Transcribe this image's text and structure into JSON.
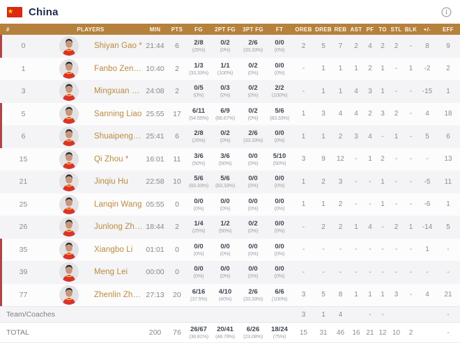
{
  "topbar": {
    "team_name": "China",
    "flag_icon": "china-flag",
    "info_icon": "info-circle"
  },
  "colors": {
    "header_bg": "#B5813C",
    "marker_red": "#B04548",
    "name_gold": "#BB8A3E",
    "title_navy": "#1E2B4D",
    "row_alt": "#F4F4F6",
    "flag_red": "#DE2910"
  },
  "table": {
    "columns": [
      "#",
      "PLAYERS",
      "MIN",
      "PTS",
      "FG",
      "2PT FG",
      "3PT FG",
      "FT",
      "OREB",
      "DREB",
      "REB",
      "AST",
      "PF",
      "TO",
      "STL",
      "BLK",
      "+/-",
      "EFF"
    ],
    "players": [
      {
        "num": "0",
        "name": "Shiyan Gao *",
        "marked": true,
        "min": "21:44",
        "pts": "6",
        "fg": "2/8",
        "fg_pct": "(25%)",
        "fg2": "0/2",
        "fg2_pct": "(0%)",
        "fg3": "2/6",
        "fg3_pct": "(33.33%)",
        "ft": "0/0",
        "ft_pct": "(0%)",
        "oreb": "2",
        "dreb": "5",
        "reb": "7",
        "ast": "2",
        "pf": "4",
        "to": "2",
        "stl": "2",
        "blk": "-",
        "pm": "8",
        "eff": "9"
      },
      {
        "num": "1",
        "name": "Fanbo Zeng *",
        "marked": false,
        "min": "10:40",
        "pts": "2",
        "fg": "1/3",
        "fg_pct": "(33.33%)",
        "fg2": "1/1",
        "fg2_pct": "(100%)",
        "fg3": "0/2",
        "fg3_pct": "(0%)",
        "ft": "0/0",
        "ft_pct": "(0%)",
        "oreb": "-",
        "dreb": "1",
        "reb": "1",
        "ast": "1",
        "pf": "2",
        "to": "1",
        "stl": "-",
        "blk": "1",
        "pm": "-2",
        "eff": "2"
      },
      {
        "num": "3",
        "name": "Mingxuan Hu *",
        "marked": false,
        "min": "24:08",
        "pts": "2",
        "fg": "0/5",
        "fg_pct": "(0%)",
        "fg2": "0/3",
        "fg2_pct": "(0%)",
        "fg3": "0/2",
        "fg3_pct": "(0%)",
        "ft": "2/2",
        "ft_pct": "(100%)",
        "oreb": "-",
        "dreb": "1",
        "reb": "1",
        "ast": "4",
        "pf": "3",
        "to": "1",
        "stl": "-",
        "blk": "-",
        "pm": "-15",
        "eff": "1"
      },
      {
        "num": "5",
        "name": "Sanning Liao",
        "marked": true,
        "min": "25:55",
        "pts": "17",
        "fg": "6/11",
        "fg_pct": "(54.55%)",
        "fg2": "6/9",
        "fg2_pct": "(66.67%)",
        "fg3": "0/2",
        "fg3_pct": "(0%)",
        "ft": "5/6",
        "ft_pct": "(83.33%)",
        "oreb": "1",
        "dreb": "3",
        "reb": "4",
        "ast": "4",
        "pf": "2",
        "to": "3",
        "stl": "2",
        "blk": "-",
        "pm": "4",
        "eff": "18"
      },
      {
        "num": "6",
        "name": "Shuaipeng Cheng",
        "marked": true,
        "min": "25:41",
        "pts": "6",
        "fg": "2/8",
        "fg_pct": "(25%)",
        "fg2": "0/2",
        "fg2_pct": "(0%)",
        "fg3": "2/6",
        "fg3_pct": "(33.33%)",
        "ft": "0/0",
        "ft_pct": "(0%)",
        "oreb": "1",
        "dreb": "1",
        "reb": "2",
        "ast": "3",
        "pf": "4",
        "to": "-",
        "stl": "1",
        "blk": "-",
        "pm": "5",
        "eff": "6"
      },
      {
        "num": "15",
        "name": "Qi Zhou *",
        "marked": false,
        "min": "16:01",
        "pts": "11",
        "fg": "3/6",
        "fg_pct": "(50%)",
        "fg2": "3/6",
        "fg2_pct": "(50%)",
        "fg3": "0/0",
        "fg3_pct": "(0%)",
        "ft": "5/10",
        "ft_pct": "(50%)",
        "oreb": "3",
        "dreb": "9",
        "reb": "12",
        "ast": "-",
        "pf": "1",
        "to": "2",
        "stl": "-",
        "blk": "-",
        "pm": "-",
        "eff": "13"
      },
      {
        "num": "21",
        "name": "Jinqiu Hu",
        "marked": false,
        "min": "22:58",
        "pts": "10",
        "fg": "5/6",
        "fg_pct": "(83.33%)",
        "fg2": "5/6",
        "fg2_pct": "(83.33%)",
        "fg3": "0/0",
        "fg3_pct": "(0%)",
        "ft": "0/0",
        "ft_pct": "(0%)",
        "oreb": "1",
        "dreb": "2",
        "reb": "3",
        "ast": "-",
        "pf": "-",
        "to": "1",
        "stl": "-",
        "blk": "-",
        "pm": "-5",
        "eff": "11"
      },
      {
        "num": "25",
        "name": "Lanqin Wang",
        "marked": false,
        "min": "05:55",
        "pts": "0",
        "fg": "0/0",
        "fg_pct": "(0%)",
        "fg2": "0/0",
        "fg2_pct": "(0%)",
        "fg3": "0/0",
        "fg3_pct": "(0%)",
        "ft": "0/0",
        "ft_pct": "(0%)",
        "oreb": "1",
        "dreb": "1",
        "reb": "2",
        "ast": "-",
        "pf": "-",
        "to": "1",
        "stl": "-",
        "blk": "-",
        "pm": "-6",
        "eff": "1"
      },
      {
        "num": "26",
        "name": "Junlong Zhu *",
        "marked": false,
        "min": "18:44",
        "pts": "2",
        "fg": "1/4",
        "fg_pct": "(25%)",
        "fg2": "1/2",
        "fg2_pct": "(50%)",
        "fg3": "0/2",
        "fg3_pct": "(0%)",
        "ft": "0/0",
        "ft_pct": "(0%)",
        "oreb": "-",
        "dreb": "2",
        "reb": "2",
        "ast": "1",
        "pf": "4",
        "to": "-",
        "stl": "2",
        "blk": "1",
        "pm": "-14",
        "eff": "5"
      },
      {
        "num": "35",
        "name": "Xiangbo Li",
        "marked": true,
        "min": "01:01",
        "pts": "0",
        "fg": "0/0",
        "fg_pct": "(0%)",
        "fg2": "0/0",
        "fg2_pct": "(0%)",
        "fg3": "0/0",
        "fg3_pct": "(0%)",
        "ft": "0/0",
        "ft_pct": "(0%)",
        "oreb": "-",
        "dreb": "-",
        "reb": "-",
        "ast": "-",
        "pf": "-",
        "to": "-",
        "stl": "-",
        "blk": "-",
        "pm": "1",
        "eff": "-"
      },
      {
        "num": "39",
        "name": "Meng Lei",
        "marked": true,
        "min": "00:00",
        "pts": "0",
        "fg": "0/0",
        "fg_pct": "(0%)",
        "fg2": "0/0",
        "fg2_pct": "(0%)",
        "fg3": "0/0",
        "fg3_pct": "(0%)",
        "ft": "0/0",
        "ft_pct": "(0%)",
        "oreb": "-",
        "dreb": "-",
        "reb": "-",
        "ast": "-",
        "pf": "-",
        "to": "-",
        "stl": "-",
        "blk": "-",
        "pm": "-",
        "eff": "-"
      },
      {
        "num": "77",
        "name": "Zhenlin Zhang",
        "marked": true,
        "min": "27:13",
        "pts": "20",
        "fg": "6/16",
        "fg_pct": "(37.5%)",
        "fg2": "4/10",
        "fg2_pct": "(40%)",
        "fg3": "2/6",
        "fg3_pct": "(33.33%)",
        "ft": "6/6",
        "ft_pct": "(100%)",
        "oreb": "3",
        "dreb": "5",
        "reb": "8",
        "ast": "1",
        "pf": "1",
        "to": "1",
        "stl": "3",
        "blk": "-",
        "pm": "4",
        "eff": "21"
      }
    ],
    "team_row": {
      "label": "Team/Coaches",
      "oreb": "3",
      "dreb": "1",
      "reb": "4",
      "ast": "",
      "pf": "-",
      "to": "-",
      "stl": "",
      "blk": "",
      "pm": "",
      "eff": "-"
    },
    "total_row": {
      "label": "TOTAL",
      "min": "200",
      "pts": "76",
      "fg": "26/67",
      "fg_pct": "(38.81%)",
      "fg2": "20/41",
      "fg2_pct": "(48.78%)",
      "fg3": "6/26",
      "fg3_pct": "(23.08%)",
      "ft": "18/24",
      "ft_pct": "(75%)",
      "oreb": "15",
      "dreb": "31",
      "reb": "46",
      "ast": "16",
      "pf": "21",
      "to": "12",
      "stl": "10",
      "blk": "2",
      "pm": "",
      "eff": "-"
    }
  }
}
